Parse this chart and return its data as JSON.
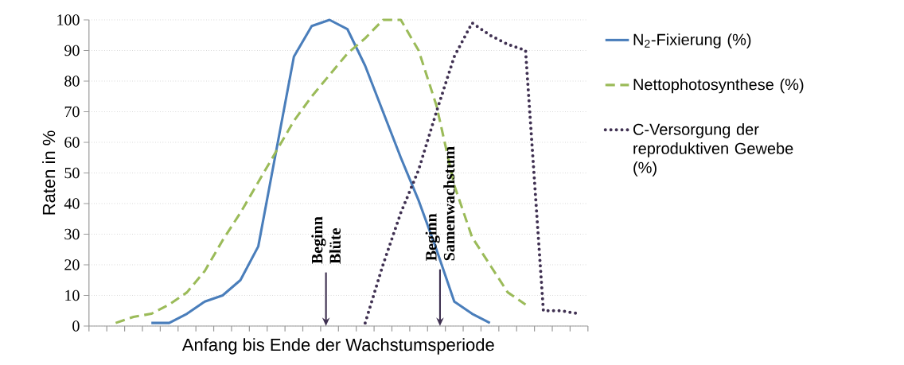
{
  "chart_data": {
    "type": "line",
    "categories": [
      null,
      null,
      null,
      null,
      null,
      null,
      null,
      null,
      null,
      null,
      null,
      null,
      null,
      null,
      null,
      null,
      null,
      null,
      null,
      null,
      null,
      null,
      null,
      null,
      null,
      null,
      null,
      null
    ],
    "series": [
      {
        "name": "N$_{2}$-Fixierung (%)",
        "color": "#4a7ebb",
        "line_style": "solid",
        "values": [
          null,
          null,
          null,
          1,
          1,
          4,
          8,
          10,
          15,
          26,
          57,
          88,
          98,
          100,
          97,
          85,
          70,
          55,
          41,
          25,
          8,
          4,
          1,
          null,
          null,
          null,
          null,
          null
        ]
      },
      {
        "name": "Nettophotosynthese (%)",
        "color": "#9bbb59",
        "line_style": "dashed",
        "values": [
          null,
          1,
          3,
          4,
          7,
          11,
          18,
          28,
          37,
          47,
          57,
          67,
          75,
          82,
          89,
          94,
          100,
          100,
          90,
          72,
          46,
          29,
          20,
          11,
          7,
          null,
          null,
          null
        ]
      },
      {
        "name": "C-Versorgung der reproduktiven Gewebe (%)",
        "color": "#403152",
        "line_style": "dotted",
        "values": [
          null,
          null,
          null,
          null,
          null,
          null,
          null,
          null,
          null,
          null,
          null,
          null,
          null,
          null,
          null,
          1,
          20,
          37,
          51,
          70,
          88,
          99,
          95,
          92,
          90,
          5,
          5,
          4
        ]
      }
    ],
    "xlabel": "Anfang bis Ende der Wachstumsperiode",
    "ylabel": "Raten in %",
    "ylim": [
      0,
      100
    ],
    "yticks": [
      0,
      10,
      20,
      30,
      40,
      50,
      60,
      70,
      80,
      90,
      100
    ],
    "grid": "y",
    "legend": "right",
    "annotations": [
      "Beginn Blüte",
      "Beginn Samenwachstum"
    ]
  }
}
